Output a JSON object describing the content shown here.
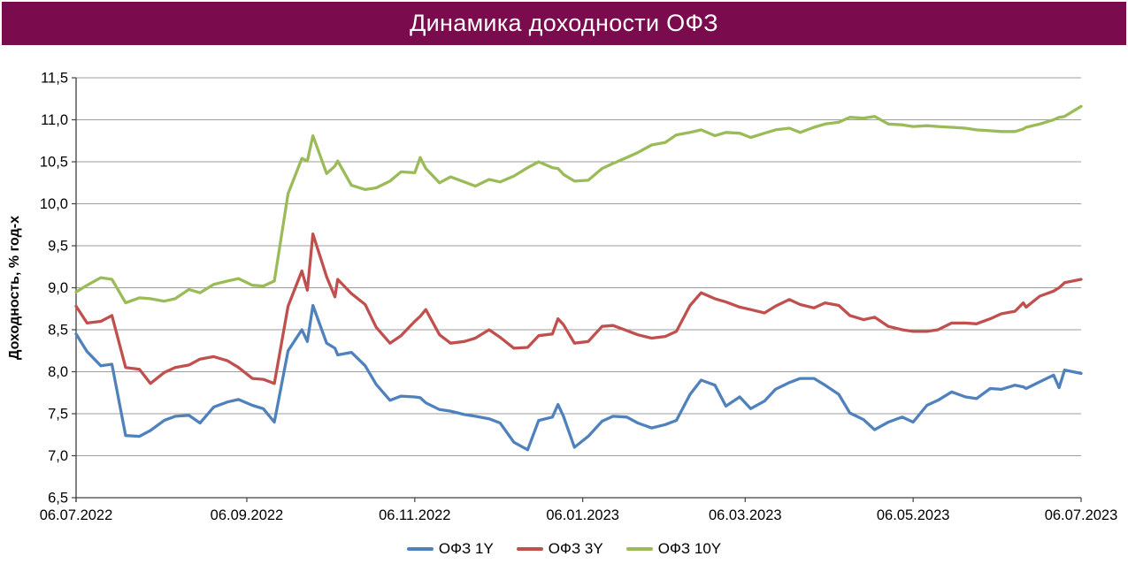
{
  "title": "Динамика доходности ОФЗ",
  "colors": {
    "banner_bg": "#7A0B4D",
    "banner_text": "#FFFFFF",
    "grid": "#9E9E9E",
    "axis": "#404040",
    "series_1y": "#4F81BD",
    "series_3y": "#C0504D",
    "series_10y": "#9BBB59"
  },
  "y_axis": {
    "title": "Доходность, % год-х",
    "ticks": [
      {
        "value": 6.5,
        "label": "6,5"
      },
      {
        "value": 7.0,
        "label": "7,0"
      },
      {
        "value": 7.5,
        "label": "7,5"
      },
      {
        "value": 8.0,
        "label": "8,0"
      },
      {
        "value": 8.5,
        "label": "8,5"
      },
      {
        "value": 9.0,
        "label": "9,0"
      },
      {
        "value": 9.5,
        "label": "9,5"
      },
      {
        "value": 10.0,
        "label": "10,0"
      },
      {
        "value": 10.5,
        "label": "10,5"
      },
      {
        "value": 11.0,
        "label": "11,0"
      },
      {
        "value": 11.5,
        "label": "11,5"
      }
    ]
  },
  "x_axis": {
    "ticks": [
      {
        "date": "2022-07-06",
        "label": "06.07.2022"
      },
      {
        "date": "2022-09-06",
        "label": "06.09.2022"
      },
      {
        "date": "2022-11-06",
        "label": "06.11.2022"
      },
      {
        "date": "2023-01-06",
        "label": "06.01.2023"
      },
      {
        "date": "2023-03-06",
        "label": "06.03.2023"
      },
      {
        "date": "2023-05-06",
        "label": "06.05.2023"
      },
      {
        "date": "2023-07-06",
        "label": "06.07.2023"
      }
    ]
  },
  "chart_data": {
    "type": "line",
    "title": "Динамика доходности ОФЗ",
    "ylabel": "Доходность, % год-х",
    "ylim": [
      6.5,
      11.5
    ],
    "x_range": [
      "2022-07-06",
      "2023-07-06"
    ],
    "grid": "horizontal",
    "legend_position": "bottom",
    "series": [
      {
        "name": "ОФЗ 1Y",
        "color": "#4F81BD",
        "points": [
          [
            "2022-07-06",
            8.45
          ],
          [
            "2022-07-10",
            8.24
          ],
          [
            "2022-07-15",
            8.07
          ],
          [
            "2022-07-19",
            8.09
          ],
          [
            "2022-07-24",
            7.24
          ],
          [
            "2022-07-29",
            7.23
          ],
          [
            "2022-08-02",
            7.3
          ],
          [
            "2022-08-07",
            7.42
          ],
          [
            "2022-08-11",
            7.47
          ],
          [
            "2022-08-16",
            7.48
          ],
          [
            "2022-08-20",
            7.39
          ],
          [
            "2022-08-25",
            7.58
          ],
          [
            "2022-08-30",
            7.64
          ],
          [
            "2022-09-03",
            7.67
          ],
          [
            "2022-09-08",
            7.6
          ],
          [
            "2022-09-12",
            7.56
          ],
          [
            "2022-09-16",
            7.4
          ],
          [
            "2022-09-21",
            8.25
          ],
          [
            "2022-09-26",
            8.5
          ],
          [
            "2022-09-28",
            8.36
          ],
          [
            "2022-09-30",
            8.79
          ],
          [
            "2022-10-05",
            8.34
          ],
          [
            "2022-10-08",
            8.28
          ],
          [
            "2022-10-09",
            8.2
          ],
          [
            "2022-10-14",
            8.23
          ],
          [
            "2022-10-19",
            8.07
          ],
          [
            "2022-10-23",
            7.85
          ],
          [
            "2022-10-28",
            7.66
          ],
          [
            "2022-11-01",
            7.71
          ],
          [
            "2022-11-06",
            7.7
          ],
          [
            "2022-11-08",
            7.69
          ],
          [
            "2022-11-10",
            7.63
          ],
          [
            "2022-11-15",
            7.55
          ],
          [
            "2022-11-19",
            7.53
          ],
          [
            "2022-11-24",
            7.49
          ],
          [
            "2022-11-28",
            7.47
          ],
          [
            "2022-12-03",
            7.44
          ],
          [
            "2022-12-07",
            7.39
          ],
          [
            "2022-12-12",
            7.16
          ],
          [
            "2022-12-17",
            7.07
          ],
          [
            "2022-12-21",
            7.42
          ],
          [
            "2022-12-26",
            7.46
          ],
          [
            "2022-12-28",
            7.61
          ],
          [
            "2022-12-30",
            7.47
          ],
          [
            "2023-01-03",
            7.1
          ],
          [
            "2023-01-08",
            7.23
          ],
          [
            "2023-01-13",
            7.41
          ],
          [
            "2023-01-17",
            7.47
          ],
          [
            "2023-01-22",
            7.46
          ],
          [
            "2023-01-26",
            7.39
          ],
          [
            "2023-01-31",
            7.33
          ],
          [
            "2023-02-05",
            7.37
          ],
          [
            "2023-02-09",
            7.42
          ],
          [
            "2023-02-14",
            7.73
          ],
          [
            "2023-02-18",
            7.9
          ],
          [
            "2023-02-23",
            7.84
          ],
          [
            "2023-02-27",
            7.59
          ],
          [
            "2023-03-04",
            7.7
          ],
          [
            "2023-03-08",
            7.56
          ],
          [
            "2023-03-13",
            7.65
          ],
          [
            "2023-03-17",
            7.79
          ],
          [
            "2023-03-22",
            7.87
          ],
          [
            "2023-03-26",
            7.92
          ],
          [
            "2023-03-31",
            7.92
          ],
          [
            "2023-04-04",
            7.84
          ],
          [
            "2023-04-09",
            7.73
          ],
          [
            "2023-04-13",
            7.51
          ],
          [
            "2023-04-18",
            7.43
          ],
          [
            "2023-04-22",
            7.31
          ],
          [
            "2023-04-27",
            7.4
          ],
          [
            "2023-05-02",
            7.46
          ],
          [
            "2023-05-06",
            7.4
          ],
          [
            "2023-05-11",
            7.6
          ],
          [
            "2023-05-15",
            7.66
          ],
          [
            "2023-05-20",
            7.76
          ],
          [
            "2023-05-25",
            7.7
          ],
          [
            "2023-05-29",
            7.68
          ],
          [
            "2023-06-03",
            7.8
          ],
          [
            "2023-06-07",
            7.79
          ],
          [
            "2023-06-12",
            7.84
          ],
          [
            "2023-06-15",
            7.82
          ],
          [
            "2023-06-16",
            7.8
          ],
          [
            "2023-06-21",
            7.88
          ],
          [
            "2023-06-26",
            7.96
          ],
          [
            "2023-06-28",
            7.81
          ],
          [
            "2023-06-30",
            8.02
          ],
          [
            "2023-07-06",
            7.98
          ]
        ]
      },
      {
        "name": "ОФЗ 3Y",
        "color": "#C0504D",
        "points": [
          [
            "2022-07-06",
            8.78
          ],
          [
            "2022-07-10",
            8.58
          ],
          [
            "2022-07-15",
            8.6
          ],
          [
            "2022-07-19",
            8.67
          ],
          [
            "2022-07-24",
            8.05
          ],
          [
            "2022-07-29",
            8.03
          ],
          [
            "2022-08-02",
            7.86
          ],
          [
            "2022-08-07",
            7.99
          ],
          [
            "2022-08-11",
            8.05
          ],
          [
            "2022-08-16",
            8.08
          ],
          [
            "2022-08-20",
            8.15
          ],
          [
            "2022-08-25",
            8.18
          ],
          [
            "2022-08-30",
            8.13
          ],
          [
            "2022-09-03",
            8.05
          ],
          [
            "2022-09-08",
            7.92
          ],
          [
            "2022-09-12",
            7.91
          ],
          [
            "2022-09-16",
            7.86
          ],
          [
            "2022-09-21",
            8.78
          ],
          [
            "2022-09-26",
            9.2
          ],
          [
            "2022-09-28",
            8.97
          ],
          [
            "2022-09-30",
            9.64
          ],
          [
            "2022-10-05",
            9.13
          ],
          [
            "2022-10-08",
            8.89
          ],
          [
            "2022-10-09",
            9.1
          ],
          [
            "2022-10-14",
            8.93
          ],
          [
            "2022-10-19",
            8.8
          ],
          [
            "2022-10-23",
            8.53
          ],
          [
            "2022-10-28",
            8.34
          ],
          [
            "2022-11-01",
            8.43
          ],
          [
            "2022-11-06",
            8.6
          ],
          [
            "2022-11-08",
            8.66
          ],
          [
            "2022-11-10",
            8.74
          ],
          [
            "2022-11-15",
            8.44
          ],
          [
            "2022-11-19",
            8.34
          ],
          [
            "2022-11-24",
            8.36
          ],
          [
            "2022-11-28",
            8.4
          ],
          [
            "2022-12-03",
            8.5
          ],
          [
            "2022-12-07",
            8.41
          ],
          [
            "2022-12-12",
            8.28
          ],
          [
            "2022-12-17",
            8.29
          ],
          [
            "2022-12-21",
            8.43
          ],
          [
            "2022-12-26",
            8.45
          ],
          [
            "2022-12-28",
            8.63
          ],
          [
            "2022-12-30",
            8.56
          ],
          [
            "2023-01-03",
            8.34
          ],
          [
            "2023-01-08",
            8.36
          ],
          [
            "2023-01-13",
            8.54
          ],
          [
            "2023-01-17",
            8.55
          ],
          [
            "2023-01-22",
            8.49
          ],
          [
            "2023-01-26",
            8.44
          ],
          [
            "2023-01-31",
            8.4
          ],
          [
            "2023-02-05",
            8.42
          ],
          [
            "2023-02-09",
            8.48
          ],
          [
            "2023-02-14",
            8.79
          ],
          [
            "2023-02-18",
            8.94
          ],
          [
            "2023-02-23",
            8.87
          ],
          [
            "2023-02-27",
            8.83
          ],
          [
            "2023-03-04",
            8.77
          ],
          [
            "2023-03-08",
            8.74
          ],
          [
            "2023-03-13",
            8.7
          ],
          [
            "2023-03-17",
            8.78
          ],
          [
            "2023-03-22",
            8.86
          ],
          [
            "2023-03-26",
            8.8
          ],
          [
            "2023-03-31",
            8.76
          ],
          [
            "2023-04-04",
            8.82
          ],
          [
            "2023-04-09",
            8.79
          ],
          [
            "2023-04-13",
            8.67
          ],
          [
            "2023-04-18",
            8.62
          ],
          [
            "2023-04-22",
            8.65
          ],
          [
            "2023-04-27",
            8.54
          ],
          [
            "2023-05-02",
            8.5
          ],
          [
            "2023-05-06",
            8.48
          ],
          [
            "2023-05-11",
            8.48
          ],
          [
            "2023-05-15",
            8.5
          ],
          [
            "2023-05-20",
            8.58
          ],
          [
            "2023-05-25",
            8.58
          ],
          [
            "2023-05-29",
            8.57
          ],
          [
            "2023-06-03",
            8.63
          ],
          [
            "2023-06-07",
            8.69
          ],
          [
            "2023-06-12",
            8.72
          ],
          [
            "2023-06-15",
            8.82
          ],
          [
            "2023-06-16",
            8.77
          ],
          [
            "2023-06-21",
            8.9
          ],
          [
            "2023-06-26",
            8.96
          ],
          [
            "2023-06-28",
            9.0
          ],
          [
            "2023-06-30",
            9.06
          ],
          [
            "2023-07-06",
            9.1
          ]
        ]
      },
      {
        "name": "ОФЗ 10Y",
        "color": "#9BBB59",
        "points": [
          [
            "2022-07-06",
            8.95
          ],
          [
            "2022-07-10",
            9.03
          ],
          [
            "2022-07-15",
            9.12
          ],
          [
            "2022-07-19",
            9.1
          ],
          [
            "2022-07-24",
            8.82
          ],
          [
            "2022-07-29",
            8.88
          ],
          [
            "2022-08-02",
            8.87
          ],
          [
            "2022-08-07",
            8.84
          ],
          [
            "2022-08-11",
            8.87
          ],
          [
            "2022-08-16",
            8.98
          ],
          [
            "2022-08-20",
            8.94
          ],
          [
            "2022-08-25",
            9.04
          ],
          [
            "2022-08-30",
            9.08
          ],
          [
            "2022-09-03",
            9.11
          ],
          [
            "2022-09-08",
            9.03
          ],
          [
            "2022-09-12",
            9.02
          ],
          [
            "2022-09-16",
            9.08
          ],
          [
            "2022-09-21",
            10.12
          ],
          [
            "2022-09-26",
            10.54
          ],
          [
            "2022-09-28",
            10.51
          ],
          [
            "2022-09-30",
            10.81
          ],
          [
            "2022-10-05",
            10.36
          ],
          [
            "2022-10-08",
            10.45
          ],
          [
            "2022-10-09",
            10.51
          ],
          [
            "2022-10-14",
            10.22
          ],
          [
            "2022-10-19",
            10.17
          ],
          [
            "2022-10-23",
            10.19
          ],
          [
            "2022-10-28",
            10.27
          ],
          [
            "2022-11-01",
            10.38
          ],
          [
            "2022-11-06",
            10.37
          ],
          [
            "2022-11-08",
            10.55
          ],
          [
            "2022-11-10",
            10.42
          ],
          [
            "2022-11-15",
            10.25
          ],
          [
            "2022-11-19",
            10.32
          ],
          [
            "2022-11-24",
            10.26
          ],
          [
            "2022-11-28",
            10.21
          ],
          [
            "2022-12-03",
            10.29
          ],
          [
            "2022-12-07",
            10.26
          ],
          [
            "2022-12-12",
            10.33
          ],
          [
            "2022-12-17",
            10.43
          ],
          [
            "2022-12-21",
            10.5
          ],
          [
            "2022-12-26",
            10.43
          ],
          [
            "2022-12-28",
            10.42
          ],
          [
            "2022-12-30",
            10.35
          ],
          [
            "2023-01-03",
            10.27
          ],
          [
            "2023-01-08",
            10.28
          ],
          [
            "2023-01-13",
            10.42
          ],
          [
            "2023-01-17",
            10.48
          ],
          [
            "2023-01-22",
            10.55
          ],
          [
            "2023-01-26",
            10.61
          ],
          [
            "2023-01-31",
            10.7
          ],
          [
            "2023-02-05",
            10.73
          ],
          [
            "2023-02-09",
            10.82
          ],
          [
            "2023-02-14",
            10.85
          ],
          [
            "2023-02-18",
            10.88
          ],
          [
            "2023-02-23",
            10.81
          ],
          [
            "2023-02-27",
            10.85
          ],
          [
            "2023-03-04",
            10.84
          ],
          [
            "2023-03-08",
            10.79
          ],
          [
            "2023-03-13",
            10.84
          ],
          [
            "2023-03-17",
            10.88
          ],
          [
            "2023-03-22",
            10.9
          ],
          [
            "2023-03-26",
            10.85
          ],
          [
            "2023-03-31",
            10.91
          ],
          [
            "2023-04-04",
            10.95
          ],
          [
            "2023-04-09",
            10.97
          ],
          [
            "2023-04-13",
            11.03
          ],
          [
            "2023-04-18",
            11.02
          ],
          [
            "2023-04-22",
            11.04
          ],
          [
            "2023-04-27",
            10.95
          ],
          [
            "2023-05-02",
            10.94
          ],
          [
            "2023-05-06",
            10.92
          ],
          [
            "2023-05-11",
            10.93
          ],
          [
            "2023-05-15",
            10.92
          ],
          [
            "2023-05-20",
            10.91
          ],
          [
            "2023-05-25",
            10.9
          ],
          [
            "2023-05-29",
            10.88
          ],
          [
            "2023-06-03",
            10.87
          ],
          [
            "2023-06-07",
            10.86
          ],
          [
            "2023-06-12",
            10.86
          ],
          [
            "2023-06-15",
            10.89
          ],
          [
            "2023-06-16",
            10.91
          ],
          [
            "2023-06-21",
            10.95
          ],
          [
            "2023-06-26",
            11.0
          ],
          [
            "2023-06-28",
            11.03
          ],
          [
            "2023-06-30",
            11.04
          ],
          [
            "2023-07-06",
            11.16
          ]
        ]
      }
    ]
  }
}
